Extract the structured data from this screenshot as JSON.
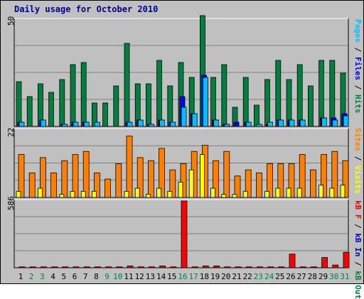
{
  "title": "Daily usage for October 2010",
  "colors": {
    "pages": "#00c0ff",
    "files": "#0000ff",
    "hits": "#008040",
    "sites": "#ff8000",
    "visits": "#ffff00",
    "kb_in": "#0000c0",
    "kb_out": "#008040",
    "kb_f": "#ff0000",
    "weekend": "#008040",
    "weekday": "#000000"
  },
  "chart_data": [
    {
      "type": "bar",
      "panel": "top",
      "ymax_label": "50",
      "legend": [
        "Pages",
        "Files",
        "Hits"
      ],
      "ylim": [
        0,
        50
      ],
      "categories": [
        "1",
        "2",
        "3",
        "4",
        "5",
        "6",
        "7",
        "8",
        "9",
        "10",
        "11",
        "12",
        "13",
        "14",
        "15",
        "16",
        "17",
        "18",
        "19",
        "20",
        "21",
        "22",
        "23",
        "24",
        "25",
        "26",
        "27",
        "28",
        "29",
        "30",
        "31"
      ],
      "series": [
        {
          "name": "Hits",
          "values": [
            21,
            14,
            20,
            16,
            22,
            29,
            30,
            11,
            11,
            19,
            39,
            20,
            20,
            31,
            19,
            30,
            23,
            52,
            23,
            29,
            9,
            23,
            10,
            22,
            31,
            22,
            29,
            19,
            31,
            31,
            25
          ]
        },
        {
          "name": "Files",
          "values": [
            2,
            0,
            3,
            0,
            1,
            2,
            2,
            0,
            0,
            0,
            2,
            3,
            1,
            3,
            2,
            14,
            6,
            24,
            3,
            1,
            2,
            2,
            0,
            1,
            3,
            3,
            3,
            0,
            4,
            4,
            6
          ]
        },
        {
          "name": "Pages",
          "values": [
            2,
            0,
            3,
            0,
            1,
            2,
            2,
            2,
            0,
            0,
            2,
            3,
            1,
            3,
            2,
            9,
            6,
            23,
            3,
            1,
            0,
            2,
            1,
            2,
            3,
            3,
            3,
            0,
            4,
            3,
            5
          ]
        }
      ]
    },
    {
      "type": "bar",
      "panel": "middle",
      "ymax_label": "22",
      "legend": [
        "Visits",
        "Sites"
      ],
      "ylim": [
        0,
        22
      ],
      "categories": [
        "1",
        "2",
        "3",
        "4",
        "5",
        "6",
        "7",
        "8",
        "9",
        "10",
        "11",
        "12",
        "13",
        "14",
        "15",
        "16",
        "17",
        "18",
        "19",
        "20",
        "21",
        "22",
        "23",
        "24",
        "25",
        "26",
        "27",
        "28",
        "29",
        "30",
        "31"
      ],
      "series": [
        {
          "name": "Sites",
          "values": [
            14,
            8,
            13,
            8,
            12,
            14,
            15,
            8,
            6,
            11,
            20,
            13,
            12,
            16,
            9,
            11,
            15,
            17,
            12,
            15,
            7,
            9,
            8,
            11,
            11,
            11,
            14,
            9,
            14,
            15,
            12
          ]
        },
        {
          "name": "Visits",
          "values": [
            2,
            0,
            3,
            0,
            1,
            2,
            2,
            2,
            0,
            0,
            2,
            3,
            1,
            3,
            2,
            5,
            9,
            14,
            3,
            1,
            1,
            2,
            0,
            2,
            3,
            3,
            3,
            0,
            4,
            3,
            4
          ]
        }
      ]
    },
    {
      "type": "bar",
      "panel": "bottom",
      "ymax_label": "586",
      "legend": [
        "KB F",
        "KB In",
        "KB Out"
      ],
      "ylim": [
        0,
        586
      ],
      "categories": [
        "1",
        "2",
        "3",
        "4",
        "5",
        "6",
        "7",
        "8",
        "9",
        "10",
        "11",
        "12",
        "13",
        "14",
        "15",
        "16",
        "17",
        "18",
        "19",
        "20",
        "21",
        "22",
        "23",
        "24",
        "25",
        "26",
        "27",
        "28",
        "29",
        "30",
        "31"
      ],
      "series": [
        {
          "name": "KB F",
          "values": [
            8,
            8,
            8,
            8,
            8,
            8,
            8,
            8,
            8,
            8,
            16,
            8,
            8,
            16,
            8,
            586,
            8,
            16,
            16,
            8,
            8,
            8,
            8,
            8,
            8,
            120,
            8,
            8,
            90,
            24,
            136
          ]
        }
      ]
    }
  ],
  "right_labels": {
    "top": [
      {
        "text": "Pages",
        "color": "#00c0ff"
      },
      {
        "text": " / ",
        "color": "#000000"
      },
      {
        "text": "Files",
        "color": "#0000ff"
      },
      {
        "text": " / ",
        "color": "#000000"
      },
      {
        "text": "Hits",
        "color": "#008040"
      }
    ],
    "middle": [
      {
        "text": "Sites",
        "color": "#ff8000"
      },
      {
        "text": " / ",
        "color": "#000000"
      },
      {
        "text": "Visits",
        "color": "#ffff00"
      }
    ],
    "bottom": [
      {
        "text": "kB F",
        "color": "#ff0000"
      },
      {
        "text": " / ",
        "color": "#000000"
      },
      {
        "text": "kB In",
        "color": "#0000c0"
      },
      {
        "text": " / ",
        "color": "#000000"
      },
      {
        "text": "kB Out",
        "color": "#008040"
      }
    ]
  },
  "weekend_days": [
    "2",
    "3",
    "9",
    "10",
    "16",
    "17",
    "23",
    "24",
    "30",
    "31"
  ]
}
